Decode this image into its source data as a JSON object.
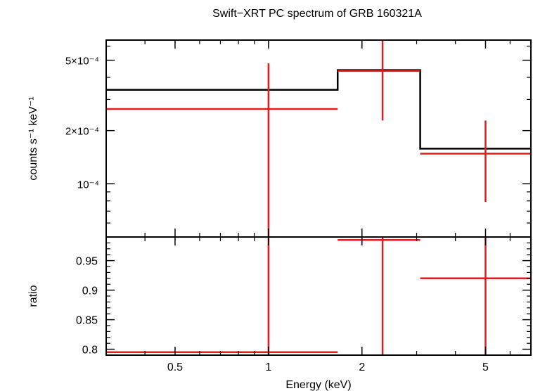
{
  "chart_data": [
    {
      "panel": "top",
      "type": "line",
      "title": "Swift−XRT PC spectrum of GRB 160321A",
      "ylabel": "counts s⁻¹ keV⁻¹",
      "xscale": "log",
      "yscale": "log",
      "xlim": [
        0.3,
        7.0
      ],
      "ylim": [
        5e-05,
        0.00065
      ],
      "yticks": [
        {
          "value": 0.0001,
          "label": "10⁻⁴"
        },
        {
          "value": 0.0002,
          "label": "2×10⁻⁴"
        },
        {
          "value": 0.0005,
          "label": "5×10⁻⁴"
        }
      ],
      "model": {
        "color": "#000000",
        "bins": [
          {
            "x0": 0.3,
            "x1": 1.67,
            "y": 0.00034
          },
          {
            "x0": 1.67,
            "x1": 3.08,
            "y": 0.00044
          },
          {
            "x0": 3.08,
            "x1": 7.0,
            "y": 0.000158
          }
        ]
      },
      "data": {
        "color": "#e41a1c",
        "points": [
          {
            "x": 1.0,
            "xlo": 0.3,
            "xhi": 1.67,
            "y": 0.000265,
            "ylo": 4e-05,
            "yhi": 0.00048
          },
          {
            "x": 2.33,
            "xlo": 1.67,
            "xhi": 3.08,
            "y": 0.000435,
            "ylo": 0.000228,
            "yhi": 0.00066
          },
          {
            "x": 5.0,
            "xlo": 3.08,
            "xhi": 7.0,
            "y": 0.000148,
            "ylo": 7.9e-05,
            "yhi": 0.000228
          }
        ]
      }
    },
    {
      "panel": "bottom",
      "type": "scatter",
      "xlabel": "Energy (keV)",
      "ylabel": "ratio",
      "xscale": "log",
      "xlim": [
        0.3,
        7.0
      ],
      "ylim": [
        0.79,
        0.99
      ],
      "xticks": [
        {
          "value": 0.5,
          "label": "0.5"
        },
        {
          "value": 1,
          "label": "1"
        },
        {
          "value": 2,
          "label": "2"
        },
        {
          "value": 5,
          "label": "5"
        }
      ],
      "yticks": [
        {
          "value": 0.8,
          "label": "0.8"
        },
        {
          "value": 0.85,
          "label": "0.85"
        },
        {
          "value": 0.9,
          "label": "0.9"
        },
        {
          "value": 0.95,
          "label": "0.95"
        }
      ],
      "data": {
        "color": "#e41a1c",
        "points": [
          {
            "x": 1.0,
            "xlo": 0.3,
            "xhi": 1.67,
            "y": 0.795,
            "ylo": 0.78,
            "yhi": 1.0
          },
          {
            "x": 2.33,
            "xlo": 1.67,
            "xhi": 3.08,
            "y": 0.985,
            "ylo": 0.78,
            "yhi": 1.0
          },
          {
            "x": 5.0,
            "xlo": 3.08,
            "xhi": 7.0,
            "y": 0.92,
            "ylo": 0.78,
            "yhi": 1.0
          }
        ]
      }
    }
  ]
}
